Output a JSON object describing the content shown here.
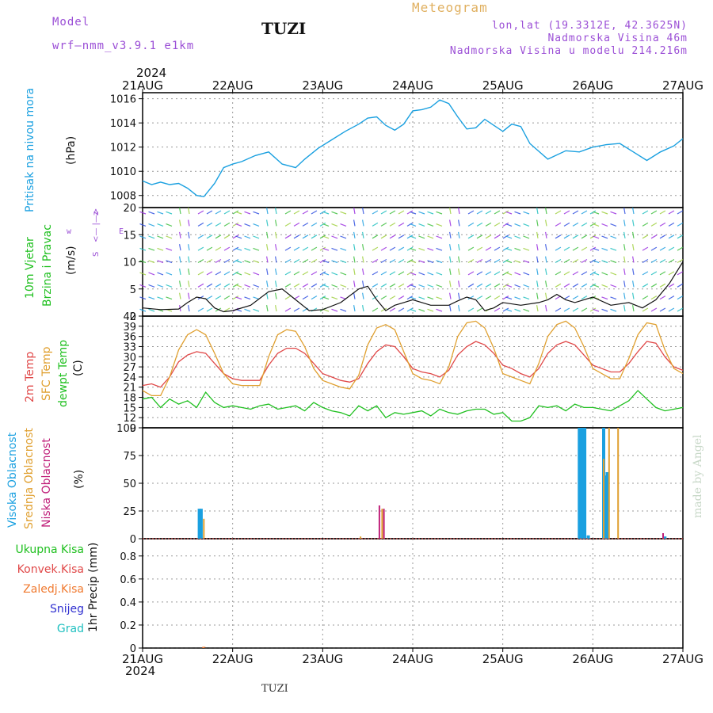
{
  "header": {
    "model_label": "Model",
    "model_name": "wrf–nmm_v3.9.1  e1km",
    "station": "TUZI",
    "product": "Meteogram",
    "lonlat": "lon,lat (19.3312E, 42.3625N)",
    "elevation": "Nadmorska Visina 46m",
    "model_elevation": "Nadmorska Visina u modelu 214.216m",
    "year_top": "2024",
    "year_bottom": "2024",
    "footer_station": "TUZI",
    "credit": "made by Angel"
  },
  "colors": {
    "pressure": "#1aa0e0",
    "t2m": "#e04848",
    "sfc": "#e0a030",
    "dewpt": "#20c020",
    "high_cloud": "#1aa0e0",
    "mid_cloud": "#e0a030",
    "low_cloud": "#c0207a",
    "precip_total": "#20c020",
    "precip_conv": "#e04848",
    "precip_frozen": "#f07a30",
    "snow": "#3030d0",
    "hail": "#20c0c0",
    "wind_side": "#20c020",
    "compass": "#9b4fd6"
  },
  "chart_data": [
    {
      "type": "line",
      "panel": "pressure",
      "ylabel": [
        "Pritisak na nivou mora",
        "(hPa)"
      ],
      "x_ticks": [
        "21AUG",
        "22AUG",
        "23AUG",
        "24AUG",
        "25AUG",
        "26AUG",
        "27AUG"
      ],
      "ylim": [
        1007,
        1016.5
      ],
      "yticks": [
        1008,
        1010,
        1012,
        1014,
        1016
      ],
      "grid": true,
      "series": [
        {
          "x": [
            0,
            0.1,
            0.2,
            0.3,
            0.4,
            0.5,
            0.6,
            0.68,
            0.8,
            0.9,
            1.0,
            1.1,
            1.25,
            1.4,
            1.55,
            1.7,
            1.8,
            1.95,
            2.1,
            2.25,
            2.4,
            2.5,
            2.6,
            2.7,
            2.8,
            2.9,
            3.0,
            3.1,
            3.2,
            3.3,
            3.4,
            3.5,
            3.6,
            3.7,
            3.8,
            3.9,
            4.0,
            4.1,
            4.2,
            4.3,
            4.5,
            4.7,
            4.85,
            5.0,
            5.15,
            5.3,
            5.45,
            5.6,
            5.75,
            5.9,
            6.0
          ],
          "values": [
            1009.2,
            1008.9,
            1009.1,
            1008.9,
            1009.0,
            1008.6,
            1008.0,
            1007.9,
            1009.0,
            1010.3,
            1010.6,
            1010.8,
            1011.3,
            1011.6,
            1010.6,
            1010.3,
            1011.0,
            1011.9,
            1012.6,
            1013.3,
            1013.9,
            1014.4,
            1014.5,
            1013.8,
            1013.4,
            1013.9,
            1015.0,
            1015.1,
            1015.3,
            1015.9,
            1015.6,
            1014.5,
            1013.5,
            1013.6,
            1014.3,
            1013.8,
            1013.3,
            1013.9,
            1013.7,
            1012.3,
            1011.0,
            1011.7,
            1011.6,
            1012.0,
            1012.2,
            1012.3,
            1011.6,
            1010.9,
            1011.6,
            1012.1,
            1012.7
          ]
        }
      ]
    },
    {
      "type": "line",
      "panel": "wind",
      "ylabel": [
        "10m Vjetar",
        "Brzina i Pravac",
        "(m/s)"
      ],
      "compass": [
        "z",
        "<— |—>",
        "S",
        "w",
        "E"
      ],
      "ylim": [
        0,
        20
      ],
      "yticks": [
        0,
        5,
        10,
        15,
        20
      ],
      "grid": true,
      "series": [
        {
          "name": "speed",
          "x": [
            0,
            0.2,
            0.4,
            0.5,
            0.6,
            0.7,
            0.8,
            0.9,
            1.0,
            1.2,
            1.4,
            1.55,
            1.7,
            1.85,
            2.0,
            2.2,
            2.4,
            2.5,
            2.6,
            2.7,
            2.8,
            2.9,
            3.0,
            3.2,
            3.4,
            3.5,
            3.6,
            3.7,
            3.8,
            3.9,
            4.0,
            4.2,
            4.4,
            4.5,
            4.6,
            4.7,
            4.8,
            4.9,
            5.0,
            5.2,
            5.4,
            5.55,
            5.7,
            5.85,
            6.0
          ],
          "values": [
            1.5,
            1.2,
            1.3,
            2.5,
            3.5,
            3.2,
            1.5,
            0.8,
            1.0,
            2.0,
            4.5,
            5.0,
            3.0,
            1.0,
            1.2,
            2.5,
            5.0,
            5.5,
            3.0,
            1.0,
            2.0,
            2.5,
            3.0,
            2.0,
            2.0,
            2.8,
            3.5,
            3.0,
            1.0,
            1.5,
            2.5,
            2.0,
            2.5,
            3.0,
            4.0,
            3.0,
            2.5,
            3.0,
            3.5,
            2.0,
            2.5,
            1.5,
            3.0,
            6.0,
            10.0
          ]
        }
      ]
    },
    {
      "type": "line",
      "panel": "temperature",
      "ylabel": [
        "2m Temp",
        "SFC Temp",
        "dewpt Temp",
        "(C)"
      ],
      "ylim": [
        9,
        42
      ],
      "yticks": [
        9,
        12,
        15,
        18,
        21,
        24,
        27,
        30,
        33,
        36,
        39,
        42
      ],
      "grid": true,
      "series": [
        {
          "name": "2m Temp",
          "x": [
            0,
            0.1,
            0.2,
            0.3,
            0.4,
            0.5,
            0.6,
            0.7,
            0.8,
            0.9,
            1.0,
            1.1,
            1.2,
            1.3,
            1.4,
            1.5,
            1.6,
            1.7,
            1.8,
            1.9,
            2.0,
            2.1,
            2.2,
            2.3,
            2.4,
            2.5,
            2.6,
            2.7,
            2.8,
            2.9,
            3.0,
            3.1,
            3.2,
            3.3,
            3.4,
            3.5,
            3.6,
            3.7,
            3.8,
            3.9,
            4.0,
            4.1,
            4.2,
            4.3,
            4.4,
            4.5,
            4.6,
            4.7,
            4.8,
            4.9,
            5.0,
            5.1,
            5.2,
            5.3,
            5.4,
            5.5,
            5.6,
            5.7,
            5.8,
            5.9,
            6.0
          ],
          "values": [
            21.5,
            22.0,
            21.0,
            24.0,
            28.5,
            30.5,
            31.5,
            31.0,
            28.0,
            25.0,
            23.5,
            23.0,
            23.0,
            23.0,
            27.5,
            31.0,
            32.5,
            32.5,
            31.0,
            28.0,
            25.0,
            24.0,
            23.0,
            22.5,
            23.5,
            28.0,
            31.5,
            33.5,
            33.0,
            30.0,
            26.5,
            25.5,
            25.0,
            24.0,
            26.0,
            30.5,
            33.0,
            34.5,
            33.5,
            31.0,
            27.5,
            26.5,
            25.0,
            24.0,
            26.5,
            31.0,
            33.5,
            34.5,
            33.5,
            30.5,
            27.5,
            26.5,
            25.5,
            25.5,
            28.0,
            31.5,
            34.5,
            34.0,
            30.0,
            27.0,
            26.0
          ]
        },
        {
          "name": "SFC Temp",
          "x": [
            0,
            0.1,
            0.2,
            0.3,
            0.4,
            0.5,
            0.6,
            0.7,
            0.8,
            0.9,
            1.0,
            1.1,
            1.2,
            1.3,
            1.4,
            1.5,
            1.6,
            1.7,
            1.8,
            1.9,
            2.0,
            2.1,
            2.2,
            2.3,
            2.4,
            2.5,
            2.6,
            2.7,
            2.8,
            2.9,
            3.0,
            3.1,
            3.2,
            3.3,
            3.4,
            3.5,
            3.6,
            3.7,
            3.8,
            3.9,
            4.0,
            4.1,
            4.2,
            4.3,
            4.4,
            4.5,
            4.6,
            4.7,
            4.8,
            4.9,
            5.0,
            5.1,
            5.2,
            5.3,
            5.4,
            5.5,
            5.6,
            5.7,
            5.8,
            5.9,
            6.0
          ],
          "values": [
            20.0,
            18.5,
            18.5,
            24.0,
            32.0,
            36.5,
            38.0,
            36.5,
            31.0,
            25.0,
            22.0,
            21.5,
            21.5,
            21.5,
            30.0,
            36.5,
            38.0,
            37.5,
            33.0,
            26.5,
            23.0,
            22.0,
            21.0,
            20.5,
            24.5,
            33.5,
            38.5,
            39.5,
            38.0,
            31.5,
            25.0,
            23.5,
            23.0,
            22.0,
            27.0,
            36.0,
            40.0,
            40.5,
            38.5,
            32.5,
            25.0,
            24.0,
            23.0,
            22.0,
            28.0,
            36.0,
            39.5,
            40.5,
            38.5,
            33.0,
            26.5,
            25.0,
            23.5,
            23.5,
            29.5,
            36.5,
            40.0,
            39.5,
            32.0,
            26.5,
            25.0
          ]
        },
        {
          "name": "dewpt Temp",
          "x": [
            0,
            0.1,
            0.2,
            0.3,
            0.4,
            0.5,
            0.6,
            0.7,
            0.8,
            0.9,
            1.0,
            1.1,
            1.2,
            1.3,
            1.4,
            1.5,
            1.6,
            1.7,
            1.8,
            1.9,
            2.0,
            2.1,
            2.2,
            2.3,
            2.4,
            2.5,
            2.6,
            2.7,
            2.8,
            2.9,
            3.0,
            3.1,
            3.2,
            3.3,
            3.4,
            3.5,
            3.6,
            3.7,
            3.8,
            3.9,
            4.0,
            4.1,
            4.2,
            4.3,
            4.4,
            4.5,
            4.6,
            4.7,
            4.8,
            4.9,
            5.0,
            5.1,
            5.2,
            5.3,
            5.4,
            5.5,
            5.6,
            5.7,
            5.8,
            5.9,
            6.0
          ],
          "values": [
            17.5,
            18.0,
            15.0,
            17.5,
            16.0,
            17.0,
            15.0,
            19.5,
            16.5,
            15.0,
            15.5,
            15.0,
            14.5,
            15.5,
            16.0,
            14.5,
            15.0,
            15.5,
            14.0,
            16.5,
            15.0,
            14.0,
            13.5,
            12.5,
            15.5,
            14.0,
            15.5,
            12.0,
            13.5,
            13.0,
            13.5,
            14.0,
            12.5,
            14.5,
            13.5,
            13.0,
            14.0,
            14.5,
            14.5,
            13.0,
            13.5,
            11.0,
            11.0,
            12.0,
            15.5,
            15.0,
            15.5,
            14.0,
            16.0,
            15.0,
            15.0,
            14.5,
            14.0,
            15.5,
            17.0,
            20.0,
            17.5,
            15.0,
            14.0,
            14.5,
            15.0
          ]
        }
      ]
    },
    {
      "type": "bar",
      "panel": "clouds",
      "ylabel": [
        "Visoka Oblacnost",
        "Srednja Oblacnost",
        "Niska Oblacnost",
        "(%)"
      ],
      "ylim": [
        0,
        100
      ],
      "yticks": [
        0,
        25,
        50,
        75,
        100
      ],
      "grid": true,
      "series": [
        {
          "name": "Visoka Oblacnost",
          "x": [
            0.63,
            0.65,
            4.85,
            4.87,
            4.89,
            4.91,
            4.95,
            5.12,
            5.14,
            5.16,
            5.8,
            6.55,
            6.85,
            6.88,
            6.91,
            6.94
          ],
          "values": [
            27,
            27,
            100,
            100,
            100,
            100,
            3,
            100,
            57,
            60,
            2,
            27,
            100,
            100,
            100,
            100
          ]
        },
        {
          "name": "Srednja Oblacnost",
          "x": [
            0.68,
            2.42,
            2.66,
            5.12,
            5.18,
            5.28
          ],
          "values": [
            18,
            2,
            27,
            72,
            100,
            100
          ]
        },
        {
          "name": "Niska Oblacnost",
          "x": [
            2.63,
            2.68,
            5.78
          ],
          "values": [
            30,
            27,
            5
          ]
        }
      ]
    },
    {
      "type": "bar",
      "panel": "precip",
      "ylabel": [
        "1hr Precip (mm)"
      ],
      "legend": [
        "Ukupna Kisa",
        "Konvek.Kisa",
        "Zaledj.Kisa",
        "Snijeg",
        "Grad"
      ],
      "ylim": [
        0,
        0.95
      ],
      "yticks": [
        0,
        0.2,
        0.4,
        0.6,
        0.8
      ],
      "grid": true,
      "series": [
        {
          "name": "Zaledj.Kisa",
          "x": [
            0.68
          ],
          "values": [
            0.01
          ]
        }
      ]
    }
  ]
}
